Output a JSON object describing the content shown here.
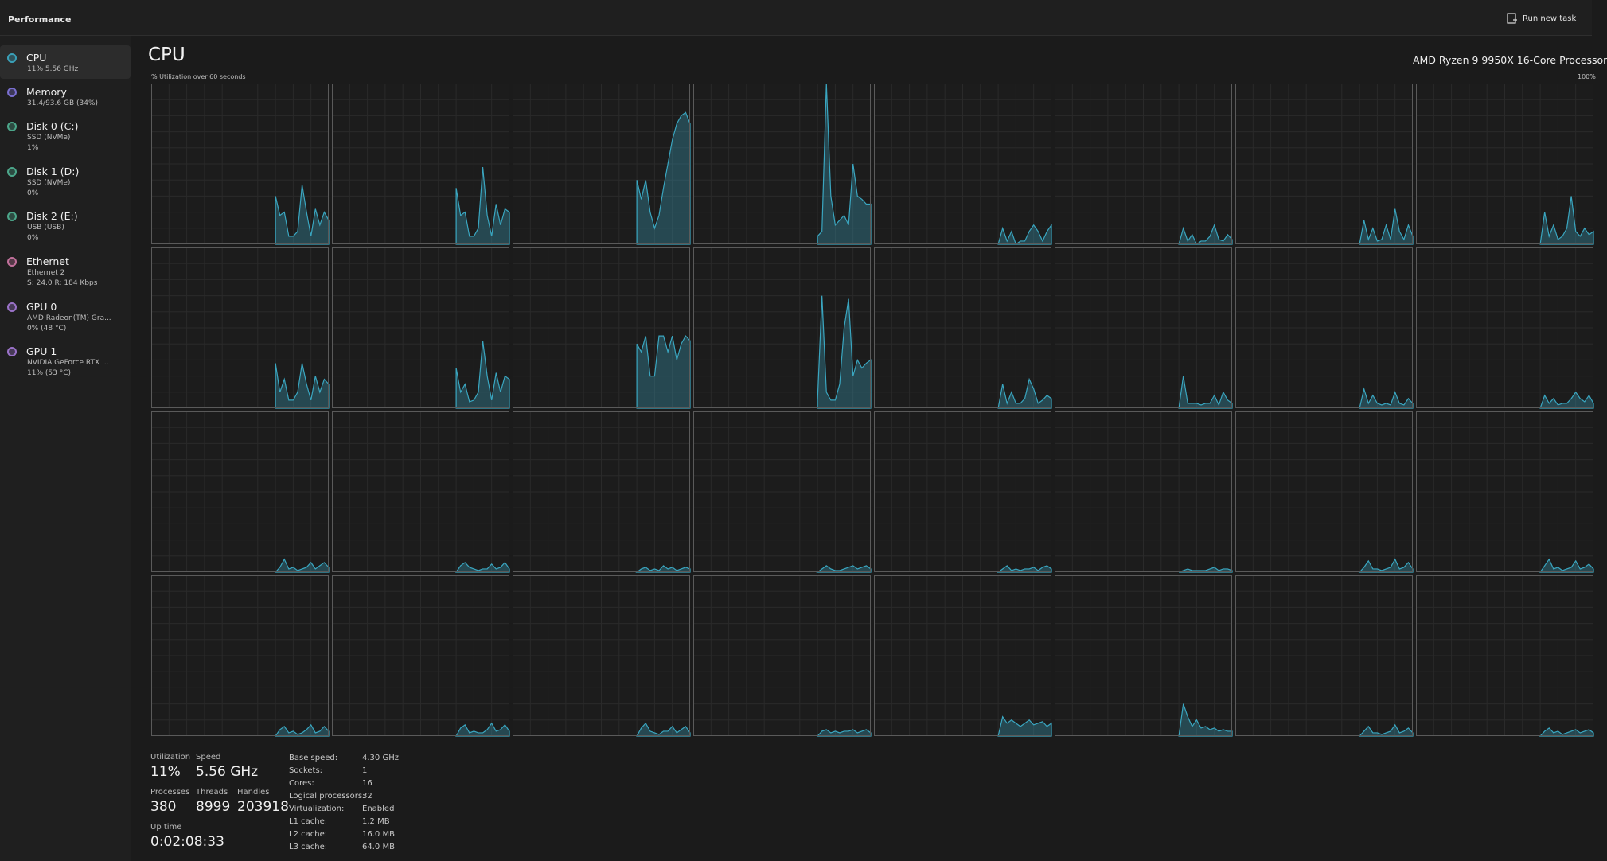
{
  "header": {
    "title": "Performance",
    "action": "Run new task"
  },
  "sidebar": [
    {
      "name": "CPU",
      "lines": [
        "11% 5.56 GHz"
      ],
      "color": "#3aa0b8"
    },
    {
      "name": "Memory",
      "lines": [
        "31.4/93.6 GB (34%)"
      ],
      "color": "#7a6fd0"
    },
    {
      "name": "Disk 0 (C:)",
      "lines": [
        "SSD (NVMe)",
        "1%"
      ],
      "color": "#4ca68a"
    },
    {
      "name": "Disk 1 (D:)",
      "lines": [
        "SSD (NVMe)",
        "0%"
      ],
      "color": "#4ca68a"
    },
    {
      "name": "Disk 2 (E:)",
      "lines": [
        "USB (USB)",
        "0%"
      ],
      "color": "#4ca68a"
    },
    {
      "name": "Ethernet",
      "lines": [
        "Ethernet 2",
        "S: 24.0 R: 184 Kbps"
      ],
      "color": "#c0709a"
    },
    {
      "name": "GPU 0",
      "lines": [
        "AMD Radeon(TM) Gra...",
        "0% (48 °C)"
      ],
      "color": "#9a72c8"
    },
    {
      "name": "GPU 1",
      "lines": [
        "NVIDIA GeForce RTX ...",
        "11% (53 °C)"
      ],
      "color": "#9a72c8"
    }
  ],
  "main": {
    "title": "CPU",
    "processor": "AMD Ryzen 9 9950X 16-Core Processor",
    "graph_label": "% Utilization over 60 seconds",
    "graph_max": "100%"
  },
  "chart_data": {
    "type": "area",
    "color": "#3aa6c0",
    "xlim": [
      0,
      60
    ],
    "ylim": [
      0,
      100
    ],
    "x": [
      42,
      43.5,
      45,
      46.5,
      48,
      49.5,
      51,
      52.5,
      54,
      55.5,
      57,
      58.5,
      60
    ],
    "series": [
      {
        "values": [
          30,
          18,
          20,
          5,
          5,
          8,
          37,
          20,
          5,
          22,
          12,
          20,
          15
        ]
      },
      {
        "values": [
          35,
          18,
          20,
          5,
          5,
          10,
          48,
          18,
          5,
          25,
          12,
          22,
          20
        ]
      },
      {
        "values": [
          40,
          28,
          40,
          20,
          10,
          18,
          35,
          50,
          65,
          75,
          80,
          82,
          75
        ]
      },
      {
        "values": [
          5,
          8,
          100,
          30,
          12,
          15,
          18,
          12,
          50,
          30,
          28,
          25,
          25
        ]
      },
      {
        "values": [
          0,
          10,
          2,
          8,
          0,
          2,
          2,
          8,
          12,
          8,
          2,
          8,
          12
        ]
      },
      {
        "values": [
          0,
          10,
          2,
          6,
          0,
          2,
          2,
          5,
          12,
          3,
          2,
          6,
          3
        ]
      },
      {
        "values": [
          0,
          15,
          3,
          10,
          2,
          3,
          12,
          3,
          22,
          8,
          3,
          12,
          5
        ]
      },
      {
        "values": [
          0,
          20,
          5,
          12,
          3,
          5,
          10,
          30,
          8,
          5,
          10,
          6,
          8
        ]
      },
      {
        "values": [
          28,
          10,
          18,
          5,
          5,
          10,
          28,
          15,
          5,
          20,
          10,
          18,
          15
        ]
      },
      {
        "values": [
          25,
          10,
          15,
          4,
          5,
          10,
          42,
          20,
          5,
          22,
          10,
          20,
          18
        ]
      },
      {
        "values": [
          40,
          35,
          45,
          20,
          20,
          45,
          45,
          35,
          45,
          30,
          40,
          45,
          42
        ]
      },
      {
        "values": [
          5,
          70,
          10,
          5,
          5,
          15,
          50,
          68,
          20,
          30,
          25,
          28,
          30
        ]
      },
      {
        "values": [
          0,
          15,
          3,
          10,
          3,
          3,
          6,
          18,
          12,
          3,
          5,
          8,
          6
        ]
      },
      {
        "values": [
          0,
          20,
          3,
          3,
          3,
          2,
          3,
          3,
          8,
          2,
          10,
          5,
          3
        ]
      },
      {
        "values": [
          0,
          12,
          3,
          8,
          3,
          2,
          3,
          2,
          10,
          3,
          2,
          6,
          3
        ]
      },
      {
        "values": [
          0,
          8,
          3,
          6,
          2,
          3,
          3,
          6,
          10,
          6,
          4,
          8,
          3
        ]
      },
      {
        "values": [
          0,
          3,
          8,
          2,
          3,
          1,
          2,
          3,
          6,
          2,
          4,
          6,
          3
        ]
      },
      {
        "values": [
          0,
          4,
          6,
          3,
          2,
          1,
          2,
          2,
          5,
          2,
          3,
          6,
          2
        ]
      },
      {
        "values": [
          0,
          2,
          3,
          1,
          2,
          1,
          4,
          2,
          3,
          1,
          2,
          3,
          2
        ]
      },
      {
        "values": [
          0,
          2,
          4,
          2,
          1,
          1,
          2,
          3,
          4,
          2,
          3,
          4,
          2
        ]
      },
      {
        "values": [
          0,
          2,
          4,
          1,
          2,
          1,
          2,
          2,
          3,
          1,
          3,
          4,
          2
        ]
      },
      {
        "values": [
          0,
          1,
          2,
          1,
          1,
          1,
          1,
          2,
          3,
          1,
          2,
          2,
          1
        ]
      },
      {
        "values": [
          0,
          3,
          7,
          2,
          2,
          1,
          2,
          3,
          8,
          2,
          3,
          6,
          2
        ]
      },
      {
        "values": [
          0,
          4,
          8,
          2,
          3,
          1,
          2,
          3,
          7,
          2,
          3,
          5,
          2
        ]
      },
      {
        "values": [
          0,
          4,
          6,
          2,
          3,
          1,
          2,
          4,
          7,
          2,
          3,
          6,
          3
        ]
      },
      {
        "values": [
          0,
          5,
          7,
          2,
          3,
          2,
          2,
          4,
          8,
          3,
          4,
          7,
          3
        ]
      },
      {
        "values": [
          0,
          5,
          8,
          3,
          2,
          1,
          3,
          3,
          6,
          2,
          4,
          6,
          2
        ]
      },
      {
        "values": [
          0,
          3,
          4,
          2,
          3,
          2,
          3,
          3,
          4,
          2,
          3,
          4,
          2
        ]
      },
      {
        "values": [
          0,
          12,
          8,
          10,
          8,
          6,
          8,
          10,
          7,
          8,
          9,
          6,
          8
        ]
      },
      {
        "values": [
          0,
          20,
          12,
          6,
          10,
          5,
          6,
          4,
          5,
          3,
          4,
          3,
          3
        ]
      },
      {
        "values": [
          0,
          3,
          6,
          2,
          2,
          1,
          2,
          3,
          7,
          2,
          3,
          5,
          2
        ]
      },
      {
        "values": [
          0,
          3,
          5,
          2,
          3,
          1,
          2,
          3,
          4,
          2,
          3,
          4,
          2
        ]
      }
    ]
  },
  "stats": {
    "utilization": {
      "label": "Utilization",
      "value": "11%"
    },
    "speed": {
      "label": "Speed",
      "value": "5.56 GHz"
    },
    "processes": {
      "label": "Processes",
      "value": 380
    },
    "threads": {
      "label": "Threads",
      "value": 8999
    },
    "handles": {
      "label": "Handles",
      "value": 203918
    },
    "uptime": {
      "label": "Up time",
      "value": "0:02:08:33"
    },
    "details": [
      [
        "Base speed:",
        "4.30 GHz"
      ],
      [
        "Sockets:",
        "1"
      ],
      [
        "Cores:",
        "16"
      ],
      [
        "Logical processors:",
        "32"
      ],
      [
        "Virtualization:",
        "Enabled"
      ],
      [
        "L1 cache:",
        "1.2 MB"
      ],
      [
        "L2 cache:",
        "16.0 MB"
      ],
      [
        "L3 cache:",
        "64.0 MB"
      ]
    ]
  }
}
